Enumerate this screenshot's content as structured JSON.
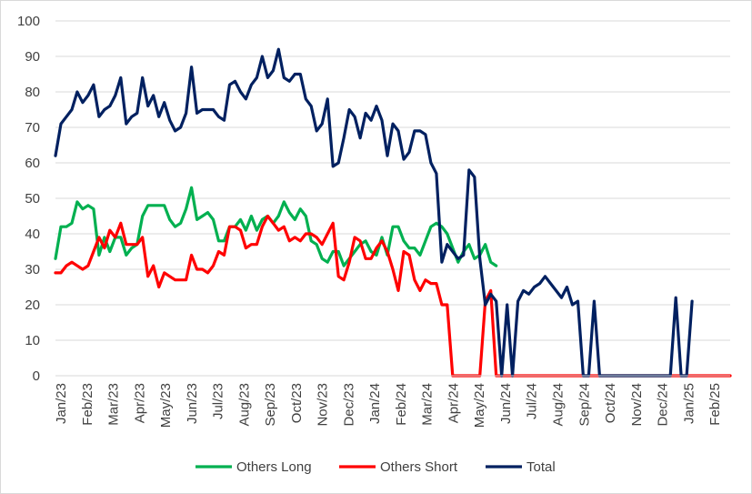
{
  "chart_data": {
    "type": "line",
    "title": "",
    "xlabel": "",
    "ylabel": "",
    "ylim": [
      0,
      100
    ],
    "yticks": [
      0,
      10,
      20,
      30,
      40,
      50,
      60,
      70,
      80,
      90,
      100
    ],
    "grid": "horizontal",
    "legend_position": "bottom",
    "x_tick_labels": [
      "Jan/23",
      "Feb/23",
      "Mar/23",
      "Apr/23",
      "May/23",
      "Jun/23",
      "Jul/23",
      "Aug/23",
      "Sep/23",
      "Oct/23",
      "Nov/23",
      "Dec/23",
      "Jan/24",
      "Feb/24",
      "Mar/24",
      "Apr/24",
      "May/24",
      "Jun/24",
      "Jul/24",
      "Aug/24",
      "Sep/24",
      "Oct/24",
      "Nov/24",
      "Dec/24",
      "Jan/25",
      "Feb/25"
    ],
    "x_index_note_free": true,
    "x_start": "2023-01-03",
    "x_step_days": 7,
    "series": [
      {
        "name": "Others Long",
        "color": "#00b050",
        "values": [
          33,
          42,
          42,
          43,
          49,
          47,
          48,
          47,
          34,
          39,
          35,
          39,
          39,
          34,
          36,
          37,
          45,
          48,
          48,
          48,
          48,
          44,
          42,
          43,
          47,
          53,
          44,
          45,
          46,
          44,
          38,
          38,
          42,
          42,
          44,
          41,
          45,
          41,
          44,
          45,
          43,
          45,
          49,
          46,
          44,
          47,
          45,
          38,
          37,
          33,
          32,
          35,
          35,
          31,
          33,
          35,
          37,
          38,
          35,
          34,
          39,
          34,
          42,
          42,
          38,
          36,
          36,
          34,
          38,
          42,
          43,
          42,
          40,
          36,
          32,
          35,
          37,
          33,
          34,
          37,
          32,
          31
        ]
      },
      {
        "name": "Others Short",
        "color": "#ff0000",
        "values": [
          29,
          29,
          31,
          32,
          31,
          30,
          31,
          35,
          39,
          36,
          41,
          39,
          43,
          37,
          37,
          37,
          39,
          28,
          31,
          25,
          29,
          28,
          27,
          27,
          27,
          34,
          30,
          30,
          29,
          31,
          35,
          34,
          42,
          42,
          41,
          36,
          37,
          37,
          42,
          45,
          43,
          41,
          42,
          38,
          39,
          38,
          40,
          40,
          39,
          37,
          40,
          43,
          28,
          27,
          32,
          39,
          38,
          33,
          33,
          36,
          38,
          35,
          30,
          24,
          35,
          34,
          27,
          24,
          27,
          26,
          26,
          20,
          20,
          0,
          0,
          0,
          0,
          0,
          0,
          21,
          24,
          0,
          0,
          0,
          0,
          0,
          0,
          0,
          0,
          0,
          0,
          0,
          0,
          0,
          0,
          0,
          0,
          0,
          0,
          0,
          0,
          0,
          0,
          0,
          0,
          0,
          0,
          0,
          0,
          0,
          0,
          0,
          0,
          0,
          0,
          0,
          0,
          0,
          0,
          0,
          0,
          0,
          0,
          0,
          0
        ]
      },
      {
        "name": "Total",
        "color": "#002060",
        "values": [
          62,
          71,
          73,
          75,
          80,
          77,
          79,
          82,
          73,
          75,
          76,
          79,
          84,
          71,
          73,
          74,
          84,
          76,
          79,
          73,
          77,
          72,
          69,
          70,
          74,
          87,
          74,
          75,
          75,
          75,
          73,
          72,
          82,
          83,
          80,
          78,
          82,
          84,
          90,
          84,
          86,
          92,
          84,
          83,
          85,
          85,
          78,
          76,
          69,
          71,
          78,
          59,
          60,
          67,
          75,
          73,
          67,
          74,
          72,
          76,
          72,
          62,
          71,
          69,
          61,
          63,
          69,
          69,
          68,
          60,
          57,
          32,
          37,
          35,
          33,
          34,
          58,
          56,
          33,
          20,
          23,
          21,
          0,
          20,
          0,
          21,
          24,
          23,
          25,
          26,
          28,
          26,
          24,
          22,
          25,
          20,
          21,
          0,
          0,
          21,
          0,
          0,
          0,
          0,
          0,
          0,
          0,
          0,
          0,
          0,
          0,
          0,
          0,
          0,
          22,
          0,
          0,
          21
        ]
      }
    ]
  }
}
